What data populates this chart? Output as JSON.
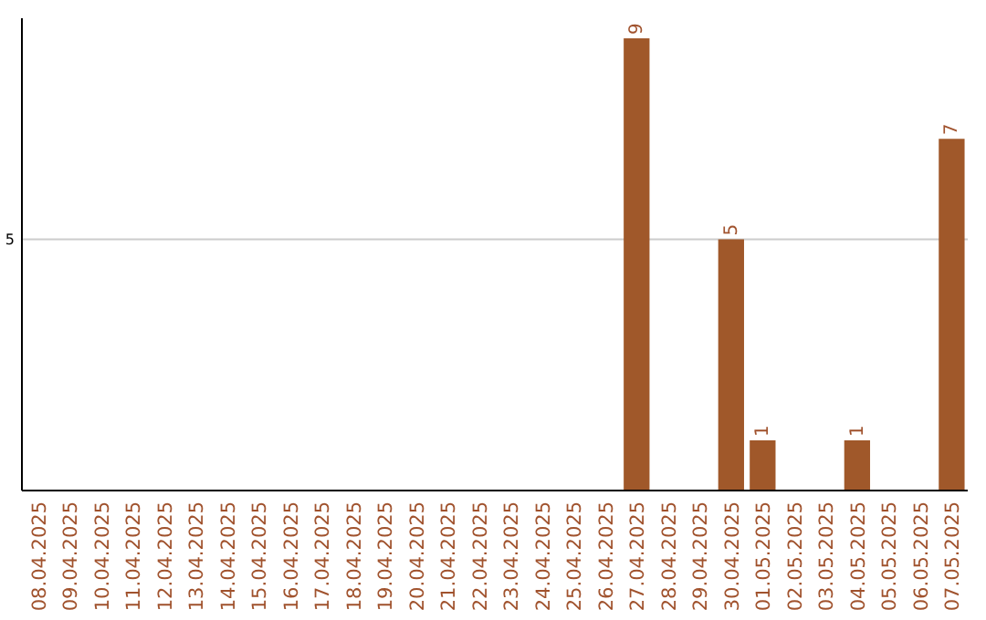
{
  "chart_data": {
    "type": "bar",
    "categories": [
      "08.04.2025",
      "09.04.2025",
      "10.04.2025",
      "11.04.2025",
      "12.04.2025",
      "13.04.2025",
      "14.04.2025",
      "15.04.2025",
      "16.04.2025",
      "17.04.2025",
      "18.04.2025",
      "19.04.2025",
      "20.04.2025",
      "21.04.2025",
      "22.04.2025",
      "23.04.2025",
      "24.04.2025",
      "25.04.2025",
      "26.04.2025",
      "27.04.2025",
      "28.04.2025",
      "29.04.2025",
      "30.04.2025",
      "01.05.2025",
      "02.05.2025",
      "03.05.2025",
      "04.05.2025",
      "05.05.2025",
      "06.05.2025",
      "07.05.2025"
    ],
    "values": [
      null,
      null,
      null,
      null,
      null,
      null,
      null,
      null,
      null,
      null,
      null,
      null,
      null,
      null,
      null,
      null,
      null,
      null,
      null,
      9,
      null,
      null,
      5,
      1,
      null,
      null,
      1,
      null,
      null,
      7
    ],
    "color": "#a0582a",
    "ylim": [
      0,
      9.4
    ],
    "yticks": [
      5
    ],
    "grid": "y",
    "data_labels": true
  }
}
